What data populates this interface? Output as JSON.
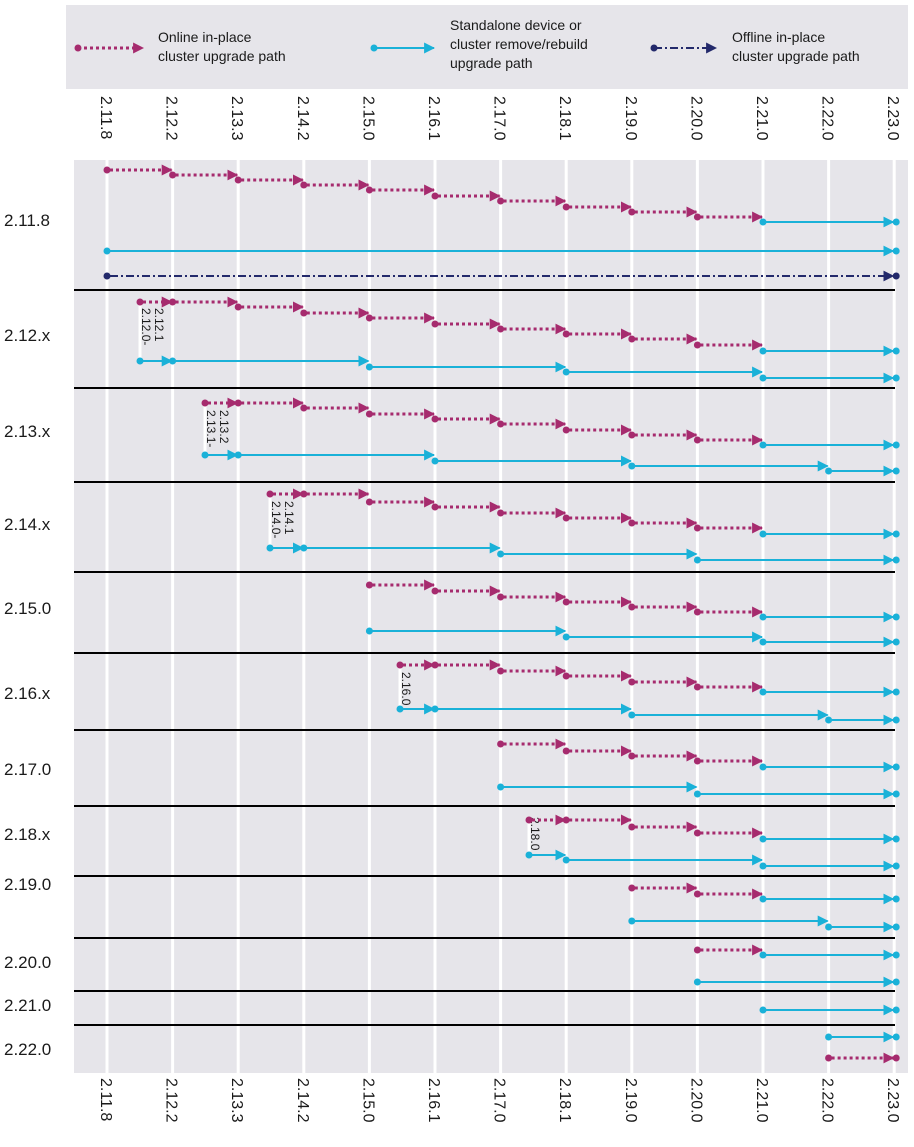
{
  "legend": {
    "online": {
      "label_lines": [
        "Online in-place",
        "cluster upgrade path"
      ],
      "color": "#a62b6e"
    },
    "standalone": {
      "label_lines": [
        "Standalone device or",
        "cluster remove/rebuild",
        "upgrade path"
      ],
      "color": "#1ab1d8"
    },
    "offline": {
      "label_lines": [
        "Offline in-place",
        "cluster upgrade path"
      ],
      "color": "#23296b"
    }
  },
  "versions": [
    "2.11.8",
    "2.12.2",
    "2.13.3",
    "2.14.2",
    "2.15.0",
    "2.16.1",
    "2.17.0",
    "2.18.1",
    "2.19.0",
    "2.20.0",
    "2.21.0",
    "2.22.0",
    "2.23.0"
  ],
  "rows": [
    {
      "label": "2.11.8"
    },
    {
      "label": "2.12.x",
      "note": [
        "2.12.0-",
        "2.12.1"
      ]
    },
    {
      "label": "2.13.x",
      "note": [
        "2.13.1-",
        "2.13.2"
      ]
    },
    {
      "label": "2.14.x",
      "note": [
        "2.14.0-",
        "2.14.1"
      ]
    },
    {
      "label": "2.15.0"
    },
    {
      "label": "2.16.x",
      "note": [
        "2.16.0"
      ]
    },
    {
      "label": "2.17.0"
    },
    {
      "label": "2.18.x",
      "note": [
        "2.18.0"
      ]
    },
    {
      "label": "2.19.0"
    },
    {
      "label": "2.20.0"
    },
    {
      "label": "2.21.0"
    },
    {
      "label": "2.22.0"
    }
  ],
  "colors": {
    "panel": "#e6e5ea",
    "gridline": "#ffffff",
    "separator": "#000000"
  }
}
